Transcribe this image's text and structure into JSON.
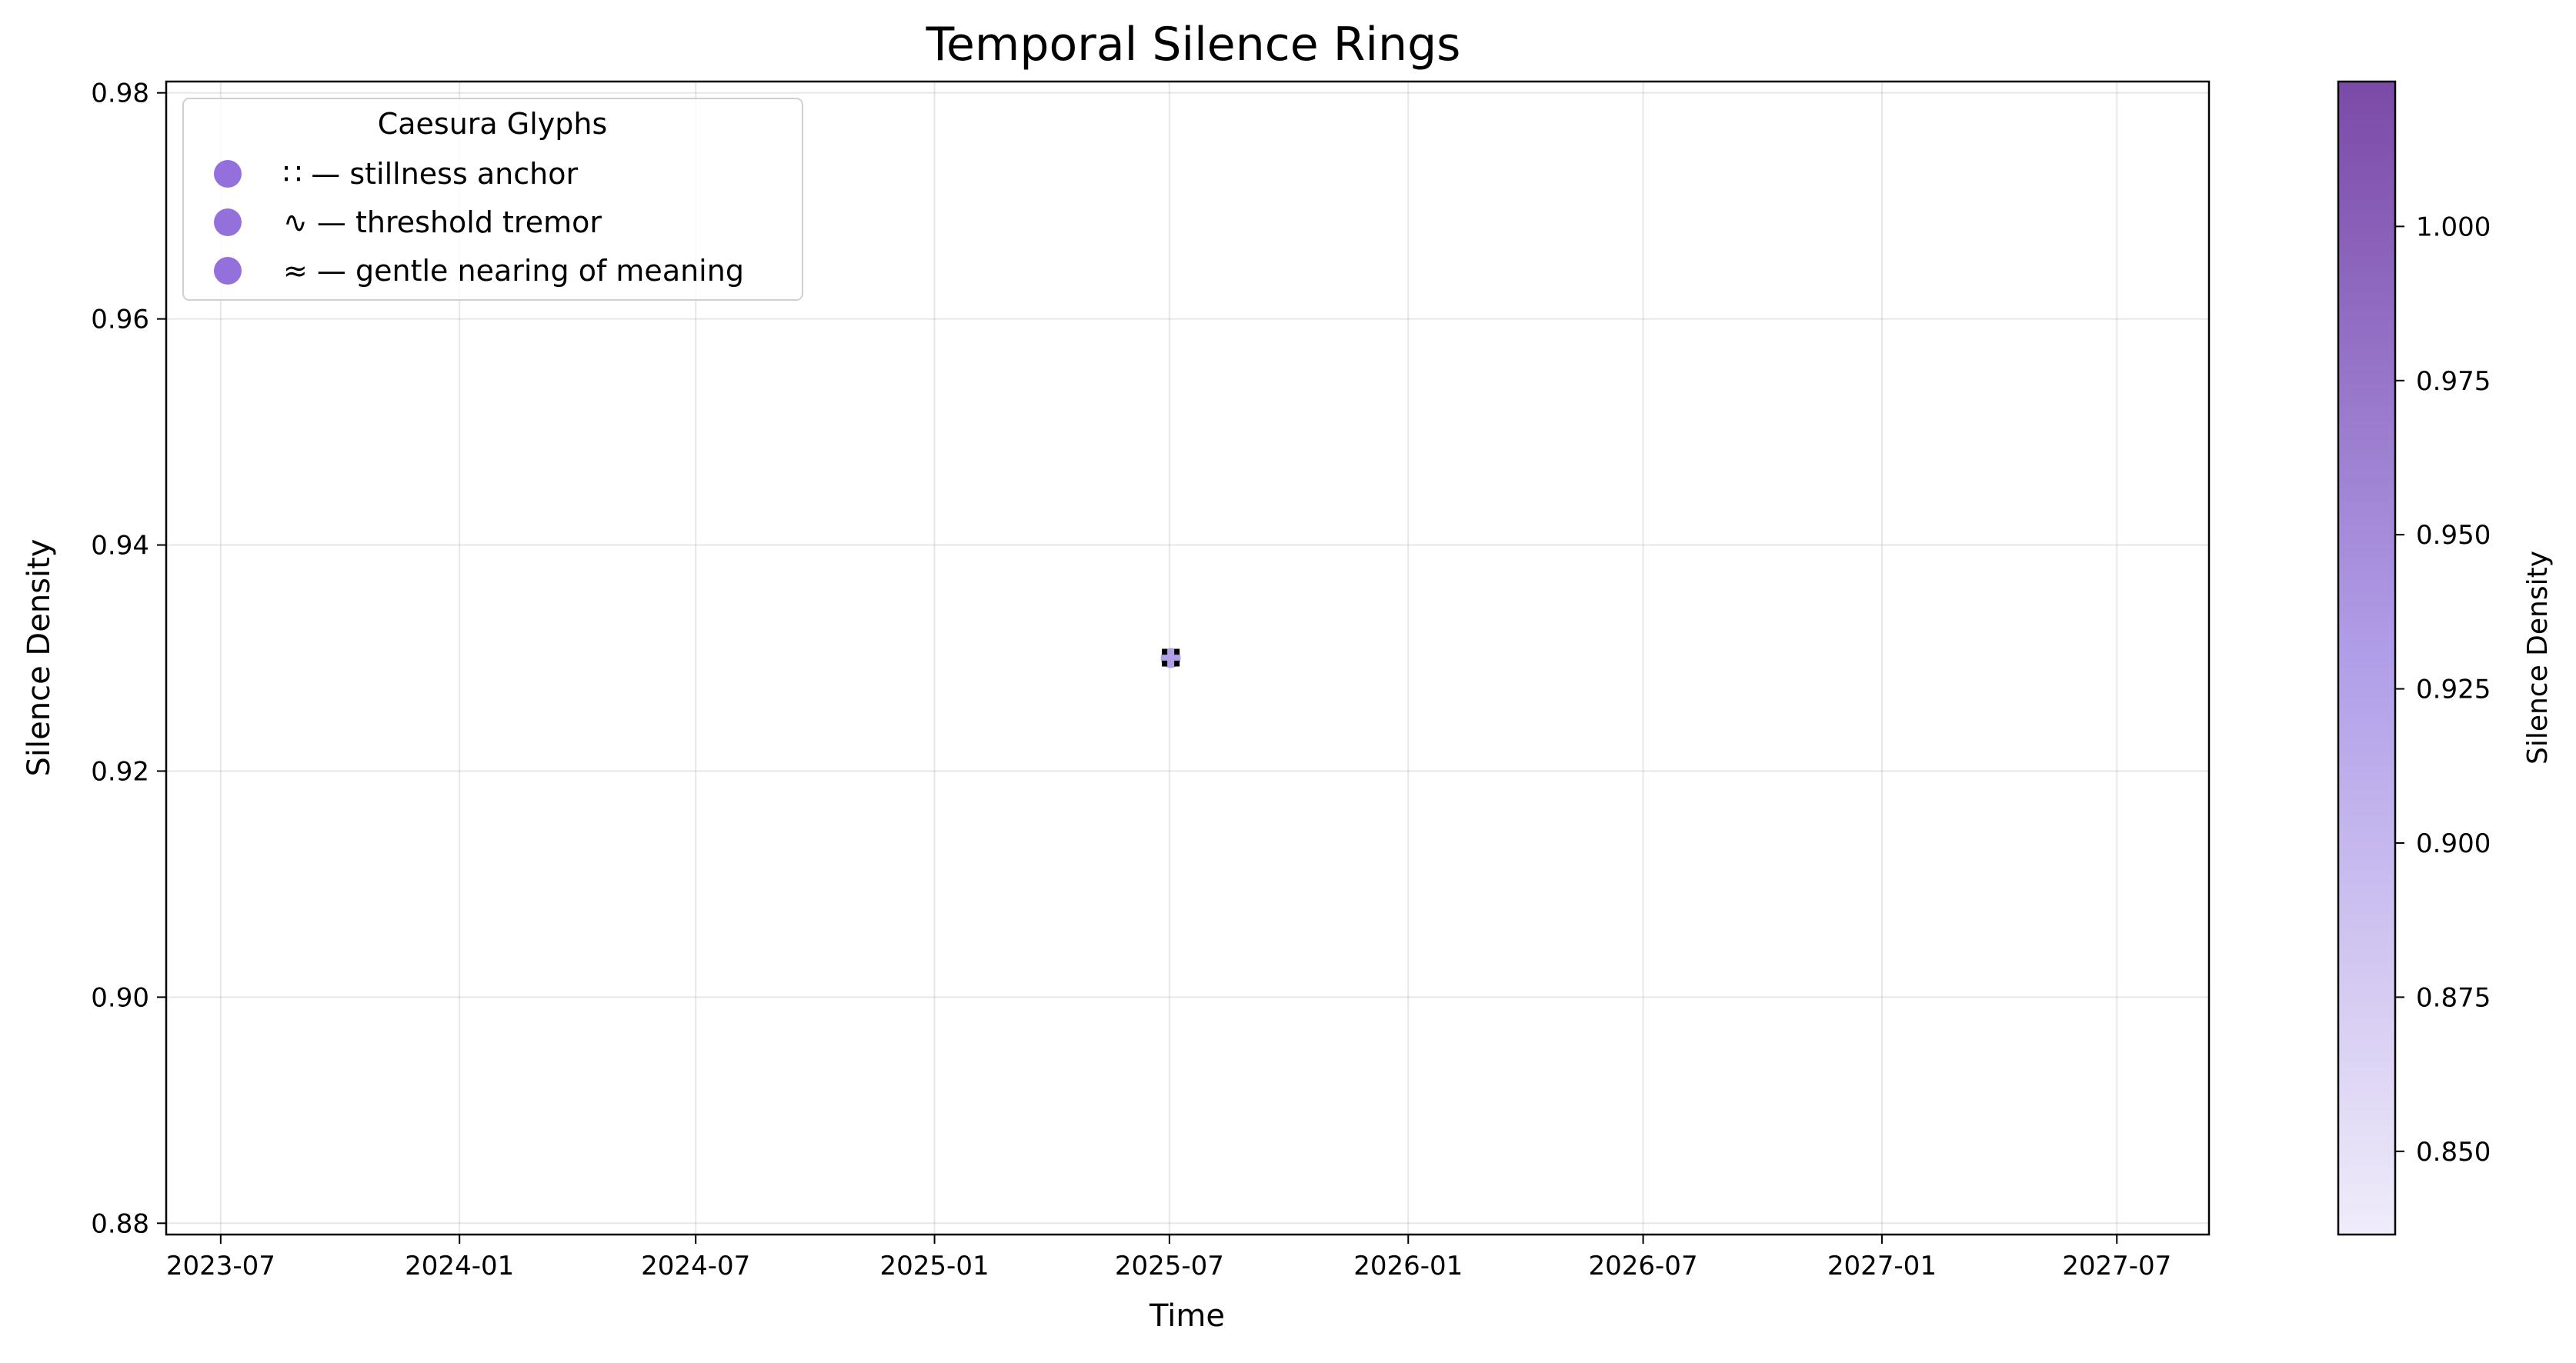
{
  "chart_data": {
    "type": "scatter",
    "title": "Temporal Silence Rings",
    "xlabel": "Time",
    "ylabel": "Silence Density",
    "x_ticks": [
      "2023-07",
      "2024-01",
      "2024-07",
      "2025-01",
      "2025-07",
      "2026-01",
      "2026-07",
      "2027-01",
      "2027-07"
    ],
    "x_range": [
      "2023-05-20",
      "2027-09-10"
    ],
    "y_ticks": [
      "0.88",
      "0.90",
      "0.92",
      "0.94",
      "0.96",
      "0.98"
    ],
    "ylim": [
      0.879,
      0.981
    ],
    "grid": true,
    "points": [
      {
        "x": "2025-07-02",
        "y": 0.93,
        "glyph": "∷"
      }
    ],
    "legend": {
      "title": "Caesura Glyphs",
      "placement": "upper-left",
      "entries": [
        {
          "label": "∷ — stillness anchor",
          "color": "#9370db"
        },
        {
          "label": "∿ — threshold tremor",
          "color": "#9370db"
        },
        {
          "label": "≈ — gentle nearing of meaning",
          "color": "#9370db"
        }
      ]
    },
    "colorbar": {
      "label": "Silence Density",
      "range": [
        0.8365,
        1.0235
      ],
      "ticks": [
        "0.850",
        "0.875",
        "0.900",
        "0.925",
        "0.950",
        "0.975",
        "1.000"
      ],
      "color_low": "#f0ecfa",
      "color_mid": "#b19ee8",
      "color_high": "#7b4aa8"
    },
    "marker_color": "#b19ee8"
  }
}
